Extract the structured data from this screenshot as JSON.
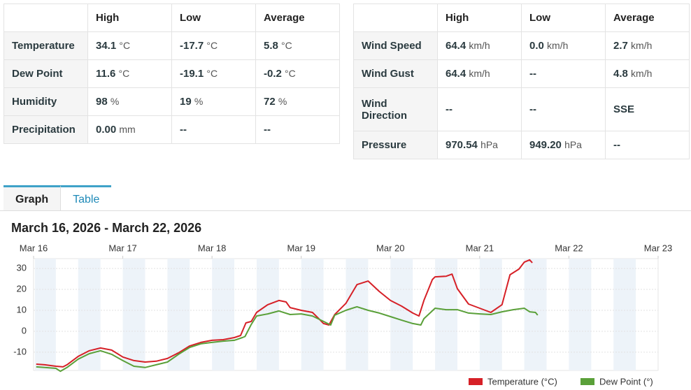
{
  "tables": [
    {
      "header": [
        "High",
        "Low",
        "Average"
      ],
      "rows": [
        {
          "label": "Temperature",
          "cells": [
            {
              "value": "34.1",
              "unit": "°C"
            },
            {
              "value": "-17.7",
              "unit": "°C"
            },
            {
              "value": "5.8",
              "unit": "°C"
            }
          ]
        },
        {
          "label": "Dew Point",
          "cells": [
            {
              "value": "11.6",
              "unit": "°C"
            },
            {
              "value": "-19.1",
              "unit": "°C"
            },
            {
              "value": "-0.2",
              "unit": "°C"
            }
          ]
        },
        {
          "label": "Humidity",
          "cells": [
            {
              "value": "98",
              "unit": "%"
            },
            {
              "value": "19",
              "unit": "%"
            },
            {
              "value": "72",
              "unit": "%"
            }
          ]
        },
        {
          "label": "Precipitation",
          "cells": [
            {
              "value": "0.00",
              "unit": "mm"
            },
            {
              "value": "--"
            },
            {
              "value": "--"
            }
          ]
        }
      ]
    },
    {
      "header": [
        "High",
        "Low",
        "Average"
      ],
      "rows": [
        {
          "label": "Wind Speed",
          "cells": [
            {
              "value": "64.4",
              "unit": "km/h"
            },
            {
              "value": "0.0",
              "unit": "km/h"
            },
            {
              "value": "2.7",
              "unit": "km/h"
            }
          ]
        },
        {
          "label": "Wind Gust",
          "cells": [
            {
              "value": "64.4",
              "unit": "km/h"
            },
            {
              "value": "--"
            },
            {
              "value": "4.8",
              "unit": "km/h"
            }
          ]
        },
        {
          "label": "Wind Direction",
          "cells": [
            {
              "value": "--"
            },
            {
              "value": "--"
            },
            {
              "value": "SSE"
            }
          ]
        },
        {
          "label": "Pressure",
          "cells": [
            {
              "value": "970.54",
              "unit": "hPa"
            },
            {
              "value": "949.20",
              "unit": "hPa"
            },
            {
              "value": "--"
            }
          ]
        }
      ]
    }
  ],
  "tabs": [
    "Graph",
    "Table"
  ],
  "chart_data": {
    "type": "line",
    "title": "March 16, 2026 - March 22, 2026",
    "xlim": [
      0,
      7
    ],
    "xticks": [
      {
        "value": 0,
        "label": "Mar 16"
      },
      {
        "value": 1,
        "label": "Mar 17"
      },
      {
        "value": 2,
        "label": "Mar 18"
      },
      {
        "value": 3,
        "label": "Mar 19"
      },
      {
        "value": 4,
        "label": "Mar 20"
      },
      {
        "value": 5,
        "label": "Mar 21"
      },
      {
        "value": 6,
        "label": "Mar 22"
      },
      {
        "value": 7,
        "label": "Mar 23"
      }
    ],
    "ylim": [
      -18.7,
      34.7
    ],
    "yticks": [
      -10,
      0,
      10,
      20,
      30
    ],
    "grid": true,
    "legend": "bottom-right",
    "series": [
      {
        "name": "Temperature (°C)",
        "color": "#d62027",
        "x": [
          0.03,
          0.125,
          0.25,
          0.33,
          0.375,
          0.5,
          0.625,
          0.75,
          0.875,
          1.0,
          1.125,
          1.25,
          1.375,
          1.5,
          1.625,
          1.75,
          1.875,
          2.0,
          2.125,
          2.25,
          2.32,
          2.38,
          2.44,
          2.5,
          2.625,
          2.75,
          2.83,
          2.875,
          3.0,
          3.125,
          3.19,
          3.25,
          3.31,
          3.375,
          3.5,
          3.625,
          3.75,
          3.875,
          4.0,
          4.125,
          4.25,
          4.32,
          4.375,
          4.47,
          4.5,
          4.625,
          4.69,
          4.75,
          4.875,
          5.0,
          5.125,
          5.25,
          5.34,
          5.44,
          5.5,
          5.56,
          5.59
        ],
        "values": [
          -15.7,
          -16,
          -16.7,
          -17,
          -16,
          -12,
          -9.3,
          -8,
          -9,
          -12.3,
          -14,
          -14.7,
          -14.3,
          -13,
          -10.3,
          -7,
          -5.3,
          -4.3,
          -4,
          -3,
          -2,
          4,
          4.7,
          9,
          12.7,
          14.7,
          14,
          11.3,
          10,
          9,
          6.3,
          3.7,
          3,
          8,
          13.3,
          22.3,
          24,
          19,
          14.7,
          12,
          8.7,
          7.3,
          14.7,
          24.7,
          26,
          26.3,
          27.3,
          20.3,
          13,
          11,
          9,
          12.7,
          27,
          29.7,
          33,
          34.1,
          32.7
        ]
      },
      {
        "name": "Dew Point (°)",
        "color": "#5aa039",
        "x": [
          0.03,
          0.125,
          0.25,
          0.3,
          0.375,
          0.5,
          0.625,
          0.75,
          0.875,
          1.0,
          1.125,
          1.25,
          1.375,
          1.5,
          1.625,
          1.75,
          1.875,
          2.0,
          2.125,
          2.25,
          2.34,
          2.37,
          2.44,
          2.5,
          2.625,
          2.75,
          2.875,
          3.0,
          3.125,
          3.25,
          3.33,
          3.375,
          3.5,
          3.625,
          3.75,
          3.875,
          4.0,
          4.125,
          4.25,
          4.34,
          4.375,
          4.5,
          4.625,
          4.75,
          4.875,
          5.0,
          5.125,
          5.25,
          5.375,
          5.5,
          5.56,
          5.625,
          5.65
        ],
        "values": [
          -17,
          -17.3,
          -17.7,
          -19.1,
          -17.3,
          -13.3,
          -10.7,
          -9.3,
          -11,
          -14,
          -16.7,
          -17.3,
          -16,
          -14.7,
          -11,
          -7.7,
          -6,
          -5.3,
          -4.7,
          -4.3,
          -3,
          -2.5,
          3.3,
          7.3,
          8.3,
          9.7,
          8,
          8.3,
          7.3,
          4.7,
          3,
          7.7,
          10,
          11.7,
          10,
          8.7,
          7,
          5.3,
          3.7,
          3,
          6,
          11,
          10.3,
          10.3,
          8.7,
          8.3,
          8,
          9.3,
          10.3,
          11,
          9.3,
          9,
          7.7
        ]
      }
    ]
  }
}
